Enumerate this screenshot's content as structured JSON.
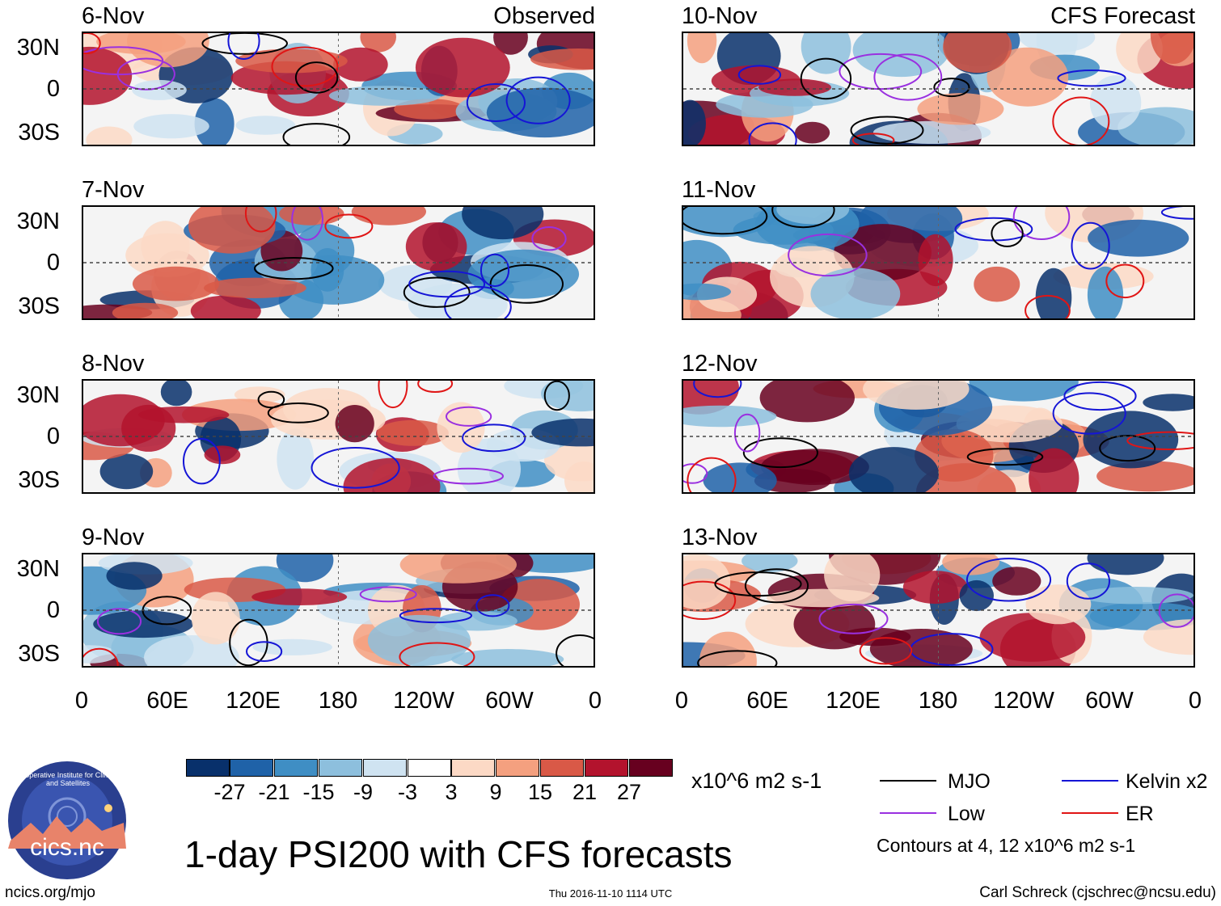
{
  "panels_left": [
    {
      "date": "6-Nov",
      "label": "Observed"
    },
    {
      "date": "7-Nov",
      "label": ""
    },
    {
      "date": "8-Nov",
      "label": ""
    },
    {
      "date": "9-Nov",
      "label": ""
    }
  ],
  "panels_right": [
    {
      "date": "10-Nov",
      "label": "CFS Forecast"
    },
    {
      "date": "11-Nov",
      "label": ""
    },
    {
      "date": "12-Nov",
      "label": ""
    },
    {
      "date": "13-Nov",
      "label": ""
    }
  ],
  "lat_labels": [
    "30N",
    "0",
    "30S"
  ],
  "lon_labels": [
    "0",
    "60E",
    "120E",
    "180",
    "120W",
    "60W",
    "0"
  ],
  "colorbar": {
    "colors": [
      "#08306b",
      "#1f62a8",
      "#3f8ec4",
      "#8dbfdd",
      "#cfe3f1",
      "#ffffff",
      "#fcd9c5",
      "#f4a07f",
      "#d95947",
      "#b3132d",
      "#67001f"
    ],
    "labels": [
      "-27",
      "-21",
      "-15",
      "-9",
      "-3",
      "3",
      "9",
      "15",
      "21",
      "27"
    ],
    "units": "x10^6 m2 s-1"
  },
  "legend": {
    "items": [
      {
        "name": "MJO",
        "color": "#000000"
      },
      {
        "name": "Kelvin x2",
        "color": "#1515d6"
      },
      {
        "name": "Low",
        "color": "#9a30e0"
      },
      {
        "name": "ER",
        "color": "#e01515"
      }
    ],
    "contours_note": "Contours at 4, 12 x10^6 m2 s-1"
  },
  "logo_text": "cics.nc",
  "logo_ring_text": "Cooperative Institute for Climate and Satellites",
  "main_title": "1-day PSI200 with CFS forecasts",
  "footer": {
    "left": "ncics.org/mjo",
    "center": "Thu 2016-11-10 1114 UTC",
    "right": "Carl Schreck (cjschrec@ncsu.edu)"
  }
}
